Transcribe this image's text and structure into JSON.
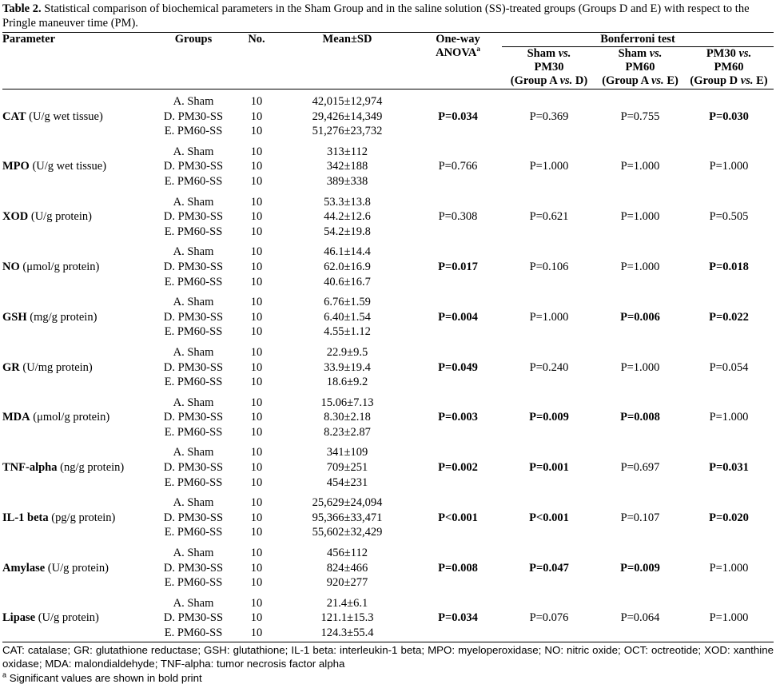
{
  "caption": {
    "label": "Table 2.",
    "text": "Statistical comparison of biochemical parameters in the Sham Group and in the saline solution (SS)-treated groups (Groups D and E) with respect to the Pringle maneuver time (PM)."
  },
  "header": {
    "parameter": "Parameter",
    "groups": "Groups",
    "no": "No.",
    "mean": "Mean±SD",
    "anova": "One-way ANOVA",
    "anova_note": "a",
    "bonferroni": "Bonferroni test",
    "comparisons": [
      {
        "line1": [
          "Sham",
          "vs."
        ],
        "line2": "PM30",
        "line3": [
          "(Group A",
          "vs.",
          "D)"
        ]
      },
      {
        "line1": [
          "Sham",
          "vs."
        ],
        "line2": "PM60",
        "line3": [
          "(Group A",
          "vs.",
          "E)"
        ]
      },
      {
        "line1": [
          "PM30",
          "vs."
        ],
        "line2": "PM60",
        "line3": [
          "(Group D",
          "vs.",
          "E)"
        ]
      }
    ]
  },
  "rows": [
    {
      "name": "CAT",
      "unit": "(U/g wet tissue)",
      "groups": [
        "A. Sham",
        "D. PM30-SS",
        "E. PM60-SS"
      ],
      "n": [
        10,
        10,
        10
      ],
      "mean": [
        "42,015±12,974",
        "29,426±14,349",
        "51,276±23,732"
      ],
      "p": [
        "P=0.034",
        "P=0.369",
        "P=0.755",
        "P=0.030"
      ],
      "bold": [
        true,
        false,
        false,
        true
      ]
    },
    {
      "name": "MPO",
      "unit": "(U/g wet tissue)",
      "groups": [
        "A. Sham",
        "D. PM30-SS",
        "E. PM60-SS"
      ],
      "n": [
        10,
        10,
        10
      ],
      "mean": [
        "313±112",
        "342±188",
        "389±338"
      ],
      "p": [
        "P=0.766",
        "P=1.000",
        "P=1.000",
        "P=1.000"
      ],
      "bold": [
        false,
        false,
        false,
        false
      ]
    },
    {
      "name": "XOD",
      "unit": "(U/g protein)",
      "groups": [
        "A. Sham",
        "D. PM30-SS",
        "E. PM60-SS"
      ],
      "n": [
        10,
        10,
        10
      ],
      "mean": [
        "53.3±13.8",
        "44.2±12.6",
        "54.2±19.8"
      ],
      "p": [
        "P=0.308",
        "P=0.621",
        "P=1.000",
        "P=0.505"
      ],
      "bold": [
        false,
        false,
        false,
        false
      ]
    },
    {
      "name": "NO",
      "unit": "(μmol/g protein)",
      "groups": [
        "A. Sham",
        "D. PM30-SS",
        "E. PM60-SS"
      ],
      "n": [
        10,
        10,
        10
      ],
      "mean": [
        "46.1±14.4",
        "62.0±16.9",
        "40.6±16.7"
      ],
      "p": [
        "P=0.017",
        "P=0.106",
        "P=1.000",
        "P=0.018"
      ],
      "bold": [
        true,
        false,
        false,
        true
      ]
    },
    {
      "name": "GSH",
      "unit": "(mg/g protein)",
      "groups": [
        "A. Sham",
        "D. PM30-SS",
        "E. PM60-SS"
      ],
      "n": [
        10,
        10,
        10
      ],
      "mean": [
        "6.76±1.59",
        "6.40±1.54",
        "4.55±1.12"
      ],
      "p": [
        "P=0.004",
        "P=1.000",
        "P=0.006",
        "P=0.022"
      ],
      "bold": [
        true,
        false,
        true,
        true
      ]
    },
    {
      "name": "GR",
      "unit": "(U/mg protein)",
      "groups": [
        "A. Sham",
        "D. PM30-SS",
        "E. PM60-SS"
      ],
      "n": [
        10,
        10,
        10
      ],
      "mean": [
        "22.9±9.5",
        "33.9±19.4",
        "18.6±9.2"
      ],
      "p": [
        "P=0.049",
        "P=0.240",
        "P=1.000",
        "P=0.054"
      ],
      "bold": [
        true,
        false,
        false,
        false
      ]
    },
    {
      "name": "MDA",
      "unit": "(μmol/g protein)",
      "groups": [
        "A. Sham",
        "D. PM30-SS",
        "E. PM60-SS"
      ],
      "n": [
        10,
        10,
        10
      ],
      "mean": [
        "15.06±7.13",
        "8.30±2.18",
        "8.23±2.87"
      ],
      "p": [
        "P=0.003",
        "P=0.009",
        "P=0.008",
        "P=1.000"
      ],
      "bold": [
        true,
        true,
        true,
        false
      ]
    },
    {
      "name": "TNF-alpha",
      "unit": "(ng/g protein)",
      "groups": [
        "A. Sham",
        "D. PM30-SS",
        "E. PM60-SS"
      ],
      "n": [
        10,
        10,
        10
      ],
      "mean": [
        "341±109",
        "709±251",
        "454±231"
      ],
      "p": [
        "P=0.002",
        "P=0.001",
        "P=0.697",
        "P=0.031"
      ],
      "bold": [
        true,
        true,
        false,
        true
      ]
    },
    {
      "name": "IL-1 beta",
      "unit": "(pg/g protein)",
      "groups": [
        "A. Sham",
        "D. PM30-SS",
        "E. PM60-SS"
      ],
      "n": [
        10,
        10,
        10
      ],
      "mean": [
        "25,629±24,094",
        "95,366±33,471",
        "55,602±32,429"
      ],
      "p": [
        "P<0.001",
        "P<0.001",
        "P=0.107",
        "P=0.020"
      ],
      "bold": [
        true,
        true,
        false,
        true
      ]
    },
    {
      "name": "Amylase",
      "unit": "(U/g protein)",
      "groups": [
        "A. Sham",
        "D. PM30-SS",
        "E. PM60-SS"
      ],
      "n": [
        10,
        10,
        10
      ],
      "mean": [
        "456±112",
        "824±466",
        "920±277"
      ],
      "p": [
        "P=0.008",
        "P=0.047",
        "P=0.009",
        "P=1.000"
      ],
      "bold": [
        true,
        true,
        true,
        false
      ]
    },
    {
      "name": "Lipase",
      "unit": "(U/g protein)",
      "groups": [
        "A. Sham",
        "D. PM30-SS",
        "E. PM60-SS"
      ],
      "n": [
        10,
        10,
        10
      ],
      "mean": [
        "21.4±6.1",
        "121.1±15.3",
        "124.3±55.4"
      ],
      "p": [
        "P=0.034",
        "P=0.076",
        "P=0.064",
        "P=1.000"
      ],
      "bold": [
        true,
        false,
        false,
        false
      ]
    }
  ],
  "footnotes": {
    "abbreviations": "CAT: catalase; GR: glutathione reductase; GSH: glutathione; IL-1 beta: interleukin-1 beta; MPO: myeloperoxidase; NO: nitric oxide; OCT: octreotide; XOD: xanthine oxidase; MDA: malondialdehyde; TNF-alpha: tumor necrosis factor alpha",
    "note_mark": "a",
    "note": "Significant values are shown in bold print"
  }
}
